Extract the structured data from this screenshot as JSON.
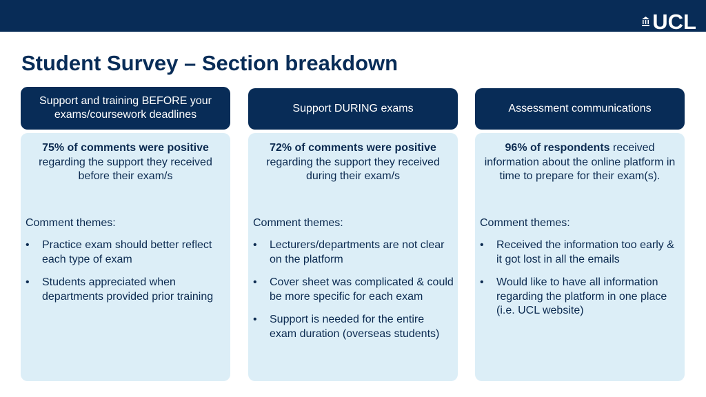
{
  "brand": {
    "logo_text": "UCL",
    "logo_icon": "portico-icon"
  },
  "page_title": "Student Survey – Section breakdown",
  "themes_label": "Comment themes:",
  "columns": [
    {
      "header": "Support and training BEFORE your exams/coursework deadlines",
      "stat_bold": "75% of comments were positive",
      "stat_rest": "regarding the support they received before their exam/s",
      "themes": [
        "Practice exam should better reflect each type of exam",
        "Students appreciated when departments provided prior training"
      ]
    },
    {
      "header": "Support DURING exams",
      "stat_bold": "72% of comments were positive",
      "stat_rest": "regarding the support they received during their exam/s",
      "themes": [
        "Lecturers/departments are not clear on the platform",
        "Cover sheet was complicated & could be more specific for each exam",
        "Support is needed for the entire exam duration (overseas students)"
      ]
    },
    {
      "header": "Assessment communications",
      "stat_bold": "96% of respondents",
      "stat_rest": "received information about the online platform in time to prepare for their exam(s).",
      "themes": [
        "Received the information too early & it got lost in all the emails",
        "Would like to have all information regarding the platform in one place (i.e. UCL website)"
      ]
    }
  ],
  "colors": {
    "navy": "#082c57",
    "panel": "#dceef7",
    "text": "#0b2a50"
  }
}
